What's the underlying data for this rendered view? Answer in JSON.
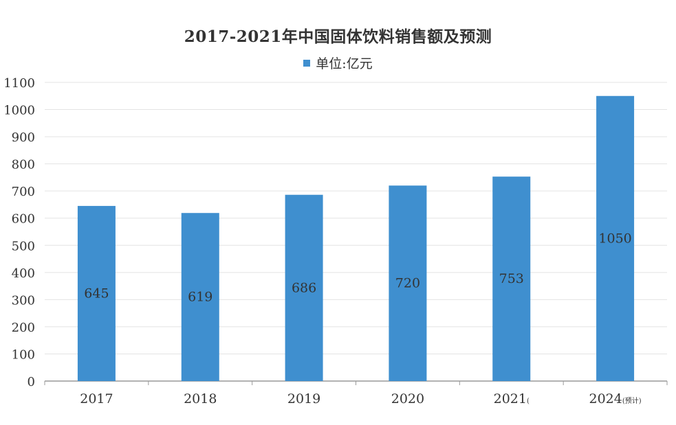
{
  "chart_data": {
    "type": "bar",
    "title": "2017-2021年中国固体饮料销售额及预测",
    "legend": [
      "单位:亿元"
    ],
    "legend_position": "top",
    "categories": [
      {
        "year": "2017",
        "note": ""
      },
      {
        "year": "2018",
        "note": ""
      },
      {
        "year": "2019",
        "note": ""
      },
      {
        "year": "2020",
        "note": ""
      },
      {
        "year": "2021",
        "note": "("
      },
      {
        "year": "2024",
        "note": "(预计)"
      }
    ],
    "series": [
      {
        "name": "单位:亿元",
        "values": [
          645,
          619,
          686,
          720,
          753,
          1050
        ]
      }
    ],
    "data_labels": [
      "645",
      "619",
      "686",
      "720",
      "753",
      "1050"
    ],
    "yticks": [
      0,
      100,
      200,
      300,
      400,
      500,
      600,
      700,
      800,
      900,
      1000,
      1100
    ],
    "ylim": [
      0,
      1100
    ],
    "grid": true,
    "colors": {
      "bar": "#3f8fcf",
      "grid": "#e3e3e3",
      "axis": "#999999",
      "text": "#333333"
    }
  }
}
